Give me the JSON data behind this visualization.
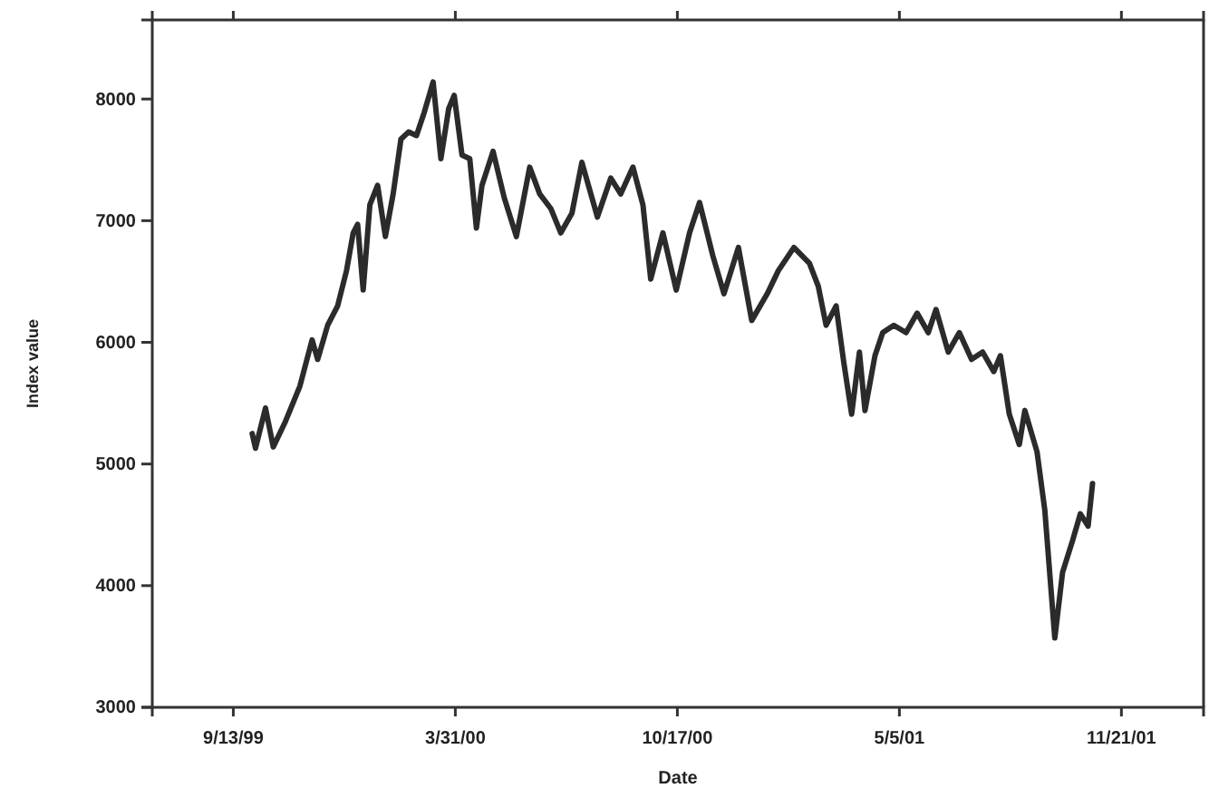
{
  "chart_data": {
    "type": "line",
    "xlabel": "Date",
    "ylabel": "Index value",
    "xlim": [
      "1999-07-02",
      "2002-02-03"
    ],
    "xticks": [
      {
        "value": "1999-09-13",
        "label": "9/13/99"
      },
      {
        "value": "2000-03-31",
        "label": "3/31/00"
      },
      {
        "value": "2000-10-17",
        "label": "10/17/00"
      },
      {
        "value": "2001-05-05",
        "label": "5/5/01"
      },
      {
        "value": "2001-11-21",
        "label": "11/21/01"
      }
    ],
    "ylim": [
      3000,
      8650
    ],
    "yticks": [
      3000,
      4000,
      5000,
      6000,
      7000,
      8000
    ],
    "grid": false,
    "marker": "none",
    "line_style": "solid",
    "series": [
      {
        "color": "#2b2b2b",
        "x": [
          "1999-09-30",
          "1999-10-03",
          "1999-10-12",
          "1999-10-19",
          "1999-10-30",
          "1999-11-12",
          "1999-11-23",
          "1999-11-28",
          "1999-12-07",
          "1999-12-16",
          "1999-12-24",
          "1999-12-30",
          "2000-01-03",
          "2000-01-08",
          "2000-01-14",
          "2000-01-21",
          "2000-01-28",
          "2000-02-04",
          "2000-02-11",
          "2000-02-18",
          "2000-02-25",
          "2000-03-03",
          "2000-03-11",
          "2000-03-18",
          "2000-03-25",
          "2000-03-30",
          "2000-04-06",
          "2000-04-13",
          "2000-04-19",
          "2000-04-24",
          "2000-05-04",
          "2000-05-14",
          "2000-05-25",
          "2000-06-06",
          "2000-06-15",
          "2000-06-25",
          "2000-07-04",
          "2000-07-14",
          "2000-07-23",
          "2000-08-06",
          "2000-08-18",
          "2000-08-27",
          "2000-09-07",
          "2000-09-16",
          "2000-09-23",
          "2000-10-04",
          "2000-10-16",
          "2000-10-28",
          "2000-11-06",
          "2000-11-18",
          "2000-11-28",
          "2000-12-11",
          "2000-12-23",
          "2001-01-06",
          "2001-01-16",
          "2001-01-30",
          "2001-02-13",
          "2001-02-21",
          "2001-02-28",
          "2001-03-09",
          "2001-03-16",
          "2001-03-23",
          "2001-03-30",
          "2001-04-04",
          "2001-04-13",
          "2001-04-20",
          "2001-04-30",
          "2001-05-11",
          "2001-05-21",
          "2001-05-31",
          "2001-06-07",
          "2001-06-18",
          "2001-06-28",
          "2001-07-09",
          "2001-07-19",
          "2001-07-29",
          "2001-08-04",
          "2001-08-12",
          "2001-08-21",
          "2001-08-26",
          "2001-09-06",
          "2001-09-13",
          "2001-09-22",
          "2001-09-29",
          "2001-10-08",
          "2001-10-15",
          "2001-10-22",
          "2001-10-26"
        ],
        "values": [
          5250,
          5130,
          5460,
          5140,
          5350,
          5640,
          6020,
          5860,
          6140,
          6300,
          6590,
          6900,
          6970,
          6430,
          7130,
          7290,
          6870,
          7220,
          7670,
          7730,
          7700,
          7890,
          8140,
          7510,
          7920,
          8030,
          7540,
          7510,
          6940,
          7290,
          7570,
          7190,
          6870,
          7440,
          7220,
          7100,
          6900,
          7060,
          7480,
          7030,
          7350,
          7220,
          7440,
          7130,
          6520,
          6900,
          6430,
          6900,
          7150,
          6710,
          6400,
          6780,
          6180,
          6400,
          6590,
          6780,
          6650,
          6460,
          6140,
          6300,
          5830,
          5410,
          5920,
          5440,
          5890,
          6080,
          6140,
          6080,
          6240,
          6080,
          6270,
          5920,
          6080,
          5860,
          5920,
          5760,
          5890,
          5410,
          5160,
          5440,
          5100,
          4620,
          3570,
          4110,
          4370,
          4590,
          4490,
          4840
        ]
      }
    ]
  }
}
